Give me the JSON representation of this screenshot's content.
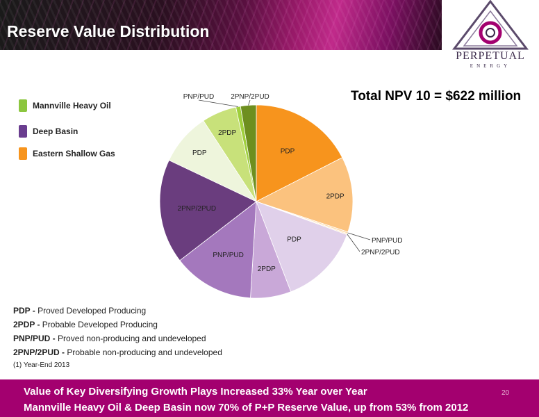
{
  "slide": {
    "title": "Reserve Value Distribution",
    "npv_text": "Total NPV 10 = $622 million",
    "page_number": "20"
  },
  "logo": {
    "name": "PERPETUAL",
    "sub": "ENERGY"
  },
  "legend": [
    {
      "label": "Mannville Heavy Oil",
      "color": "#8cc63f"
    },
    {
      "label": "Deep Basin",
      "color": "#6a3d8f"
    },
    {
      "label": "Eastern Shallow Gas",
      "color": "#f7941d"
    }
  ],
  "chart_data": {
    "type": "pie",
    "title": "",
    "slices": [
      {
        "group": "Eastern Shallow Gas",
        "label": "PDP",
        "value": 18,
        "color": "#f7941d"
      },
      {
        "group": "Eastern Shallow Gas",
        "label": "2PDP",
        "value": 13,
        "color": "#fbc27e"
      },
      {
        "group": "Eastern Shallow Gas",
        "label": "PNP/PUD",
        "value": 0.3,
        "color": "#fcd9a8"
      },
      {
        "group": "Eastern Shallow Gas",
        "label": "2PNP/2PUD",
        "value": 0.2,
        "color": "#fde6c5"
      },
      {
        "group": "Deep Basin",
        "label": "PDP",
        "value": 14,
        "color": "#e0d0ea"
      },
      {
        "group": "Deep Basin",
        "label": "2PDP",
        "value": 7,
        "color": "#c9a8d8"
      },
      {
        "group": "Deep Basin",
        "label": "PNP/PUD",
        "value": 14,
        "color": "#a478bd"
      },
      {
        "group": "Deep Basin",
        "label": "2PNP/2PUD",
        "value": 18,
        "color": "#6a3d7e"
      },
      {
        "group": "Mannville Heavy Oil",
        "label": "PDP",
        "value": 9,
        "color": "#eef5dc"
      },
      {
        "group": "Mannville Heavy Oil",
        "label": "2PDP",
        "value": 6,
        "color": "#c8e17a"
      },
      {
        "group": "Mannville Heavy Oil",
        "label": "PNP/PUD",
        "value": 0.8,
        "color": "#9fcf3c"
      },
      {
        "group": "Mannville Heavy Oil",
        "label": "2PNP/2PUD",
        "value": 2.7,
        "color": "#6e8f1f"
      }
    ]
  },
  "definitions": [
    {
      "term": "PDP - ",
      "text": "Proved Developed Producing"
    },
    {
      "term": "2PDP - ",
      "text": "Probable Developed Producing"
    },
    {
      "term": "PNP/PUD - ",
      "text": "Proved non-producing and undeveloped"
    },
    {
      "term": "2PNP/2PUD - ",
      "text": "Probable non-producing and undeveloped"
    }
  ],
  "footnote": "(1)  Year-End 2013",
  "footer": {
    "line1": "Value of Key Diversifying Growth Plays Increased 33% Year over Year",
    "line2": "Mannville Heavy Oil  & Deep Basin now 70% of P+P Reserve Value, up from 53% from 2012"
  }
}
